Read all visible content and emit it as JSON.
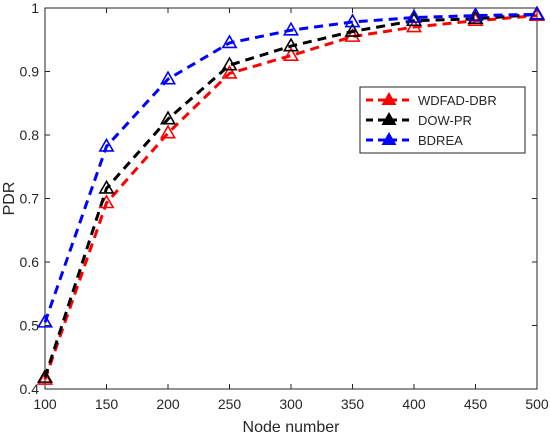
{
  "chart_data": {
    "type": "line",
    "title": "",
    "xlabel": "Node number",
    "ylabel": "PDR",
    "x": [
      100,
      150,
      200,
      250,
      300,
      350,
      400,
      450,
      500
    ],
    "xlim": [
      100,
      500
    ],
    "ylim": [
      0.4,
      1.0
    ],
    "xticks": [
      "100",
      "150",
      "200",
      "250",
      "300",
      "350",
      "400",
      "450",
      "500"
    ],
    "yticks": [
      "0.4",
      "0.5",
      "0.6",
      "0.7",
      "0.8",
      "0.9",
      "1"
    ],
    "grid": false,
    "legend_position": "upper-right",
    "series": [
      {
        "name": "WDFAD-DBR",
        "color": "#ff0000",
        "marker": "triangle",
        "line_style": "dashed",
        "values": [
          0.415,
          0.693,
          0.803,
          0.897,
          0.925,
          0.955,
          0.97,
          0.98,
          0.988
        ]
      },
      {
        "name": "DOW-PR",
        "color": "#000000",
        "marker": "triangle",
        "line_style": "dashed",
        "values": [
          0.418,
          0.716,
          0.825,
          0.91,
          0.94,
          0.963,
          0.98,
          0.983,
          0.99
        ]
      },
      {
        "name": "BDREA",
        "color": "#0000ff",
        "marker": "triangle",
        "line_style": "dashed",
        "values": [
          0.505,
          0.782,
          0.888,
          0.945,
          0.965,
          0.978,
          0.985,
          0.988,
          0.99
        ]
      }
    ]
  }
}
